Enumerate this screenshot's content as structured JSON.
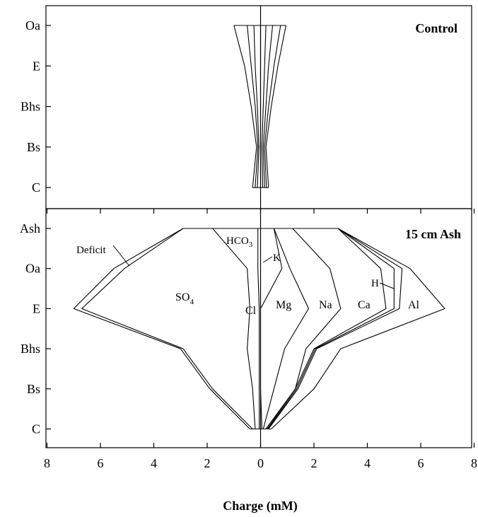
{
  "chart_data": [
    {
      "type": "area",
      "panel": "top",
      "title": "Control",
      "categories": [
        "Oa",
        "E",
        "Bhs",
        "Bs",
        "C"
      ],
      "xlim": [
        -8,
        8
      ],
      "grid": false,
      "boundaries": [
        {
          "values": [
            -1.0,
            -0.6,
            -0.35,
            -0.15,
            -0.3
          ]
        },
        {
          "values": [
            -0.5,
            -0.35,
            -0.2,
            -0.1,
            -0.2
          ]
        },
        {
          "values": [
            -0.25,
            -0.2,
            -0.12,
            -0.06,
            -0.12
          ]
        },
        {
          "values": [
            0.0,
            0.0,
            0.0,
            0.0,
            0.0
          ]
        },
        {
          "values": [
            0.2,
            0.15,
            0.1,
            0.05,
            0.08
          ]
        },
        {
          "values": [
            0.45,
            0.3,
            0.2,
            0.1,
            0.15
          ]
        },
        {
          "values": [
            0.75,
            0.5,
            0.3,
            0.15,
            0.22
          ]
        },
        {
          "values": [
            0.95,
            0.65,
            0.4,
            0.2,
            0.3
          ]
        }
      ]
    },
    {
      "type": "area",
      "panel": "bottom",
      "title": "15 cm Ash",
      "categories": [
        "Ash",
        "Oa",
        "E",
        "Bhs",
        "Bs",
        "C"
      ],
      "xlim": [
        -8,
        8
      ],
      "xlabel": "Charge (mM)",
      "xticks": [
        -8,
        -6,
        -4,
        -2,
        0,
        2,
        4,
        6,
        8
      ],
      "xtick_labels": [
        "8",
        "6",
        "4",
        "2",
        "0",
        "2",
        "4",
        "6",
        "8"
      ],
      "grid": false,
      "boundaries": [
        {
          "values": [
            -2.9,
            -5.5,
            -7.0,
            -3.0,
            -1.9,
            -0.4
          ]
        },
        {
          "values": [
            -2.9,
            -5.1,
            -6.7,
            -2.9,
            -1.8,
            -0.3
          ]
        },
        {
          "values": [
            -1.8,
            -0.5,
            -0.4,
            -0.5,
            -0.3,
            -0.2
          ]
        },
        {
          "values": [
            -0.1,
            -0.1,
            -0.05,
            -0.05,
            -0.05,
            -0.05
          ]
        },
        {
          "values": [
            0.5,
            0.8,
            0.0,
            0.0,
            0.0,
            0.05
          ]
        },
        {
          "values": [
            0.5,
            1.1,
            1.8,
            0.9,
            0.5,
            0.1
          ]
        },
        {
          "values": [
            1.2,
            2.6,
            3.0,
            1.7,
            1.3,
            0.2
          ]
        },
        {
          "values": [
            2.9,
            4.5,
            4.7,
            2.0,
            1.3,
            0.25
          ]
        },
        {
          "values": [
            2.9,
            5.0,
            5.0,
            2.05,
            1.35,
            0.28
          ]
        },
        {
          "values": [
            2.9,
            5.3,
            5.2,
            2.1,
            1.4,
            0.3
          ]
        },
        {
          "values": [
            2.9,
            5.6,
            6.9,
            3.0,
            2.0,
            0.4
          ]
        }
      ],
      "labels": {
        "deficit": "Deficit",
        "hco3": "HCO",
        "hco3_sub": "3",
        "k": "K",
        "so4": "SO",
        "so4_sub": "4",
        "cl": "Cl",
        "mg": "Mg",
        "na": "Na",
        "ca": "Ca",
        "h": "H",
        "al": "Al"
      }
    }
  ]
}
